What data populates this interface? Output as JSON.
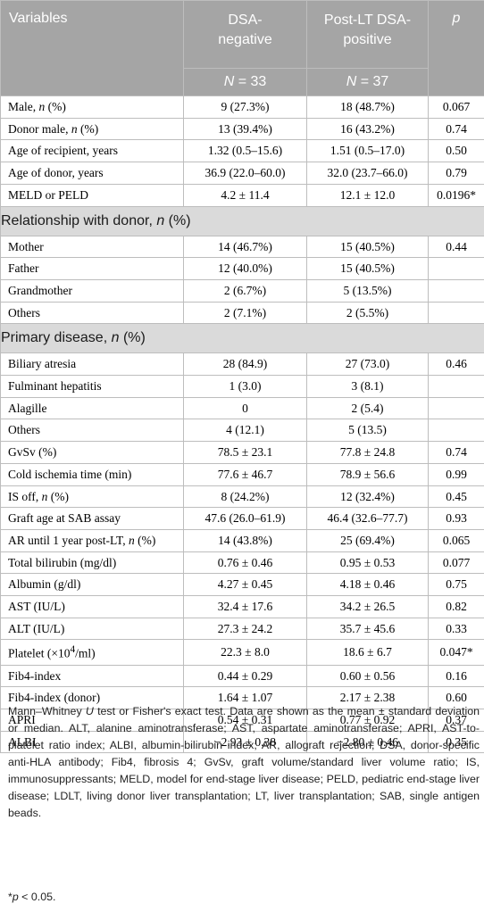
{
  "header": {
    "variables": "Variables",
    "col1_line1": "DSA-",
    "col1_line2": "negative",
    "col2_line1": "Post-LT DSA-",
    "col2_line2": "positive",
    "p": "p",
    "n_label": "N",
    "n1": " = 33",
    "n2": " = 37"
  },
  "rows1": [
    {
      "label": "Male, ",
      "label_i": "n",
      "label_tail": " (%)",
      "a": "9 (27.3%)",
      "b": "18 (48.7%)",
      "p": "0.067"
    },
    {
      "label": "Donor male, ",
      "label_i": "n",
      "label_tail": " (%)",
      "a": "13 (39.4%)",
      "b": "16 (43.2%)",
      "p": "0.74"
    },
    {
      "label": "Age of recipient, years",
      "a": "1.32 (0.5–15.6)",
      "b": "1.51 (0.5–17.0)",
      "p": "0.50"
    },
    {
      "label": "Age of donor, years",
      "a": "36.9 (22.0–60.0)",
      "b": "32.0 (23.7–66.0)",
      "p": "0.79"
    },
    {
      "label": "MELD or PELD",
      "a": "4.2 ± 11.4",
      "b": "12.1 ± 12.0",
      "p": "0.0196*"
    }
  ],
  "section1": {
    "label": "Relationship with donor, ",
    "label_i": "n",
    "label_tail": " (%)"
  },
  "rows2": [
    {
      "label": "Mother",
      "a": "14 (46.7%)",
      "b": "15 (40.5%)",
      "p": "0.44"
    },
    {
      "label": "Father",
      "a": "12 (40.0%)",
      "b": "15 (40.5%)",
      "p": ""
    },
    {
      "label": "Grandmother",
      "a": "2 (6.7%)",
      "b": "5 (13.5%)",
      "p": ""
    },
    {
      "label": "Others",
      "a": "2 (7.1%)",
      "b": "2 (5.5%)",
      "p": ""
    }
  ],
  "section2": {
    "label": "Primary disease, ",
    "label_i": "n",
    "label_tail": " (%)"
  },
  "rows3": [
    {
      "label": "Biliary atresia",
      "a": "28 (84.9)",
      "b": "27 (73.0)",
      "p": "0.46"
    },
    {
      "label": "Fulminant hepatitis",
      "a": "1 (3.0)",
      "b": "3 (8.1)",
      "p": ""
    },
    {
      "label": "Alagille",
      "a": "0",
      "b": "2 (5.4)",
      "p": ""
    },
    {
      "label": "Others",
      "a": "4 (12.1)",
      "b": "5 (13.5)",
      "p": ""
    },
    {
      "label": "GvSv (%)",
      "a": "78.5 ± 23.1",
      "b": "77.8 ± 24.8",
      "p": "0.74"
    },
    {
      "label": "Cold ischemia time (min)",
      "a": "77.6 ± 46.7",
      "b": "78.9 ± 56.6",
      "p": "0.99"
    },
    {
      "label": "IS off, ",
      "label_i": "n",
      "label_tail": " (%)",
      "a": "8 (24.2%)",
      "b": "12 (32.4%)",
      "p": "0.45"
    },
    {
      "label": "Graft age at SAB assay",
      "a": "47.6 (26.0–61.9)",
      "b": "46.4 (32.6–77.7)",
      "p": "0.93"
    },
    {
      "label": "AR until 1 year post-LT, ",
      "label_i": "n",
      "label_tail": " (%)",
      "a": "14 (43.8%)",
      "b": "25 (69.4%)",
      "p": "0.065"
    },
    {
      "label": "Total bilirubin (mg/dl)",
      "a": "0.76 ± 0.46",
      "b": "0.95 ± 0.53",
      "p": "0.077"
    },
    {
      "label": "Albumin (g/dl)",
      "a": "4.27 ± 0.45",
      "b": "4.18 ± 0.46",
      "p": "0.75"
    },
    {
      "label": "AST (IU/L)",
      "a": "32.4 ± 17.6",
      "b": "34.2 ± 26.5",
      "p": "0.82"
    },
    {
      "label": "ALT (IU/L)",
      "a": "27.3 ± 24.2",
      "b": "35.7 ± 45.6",
      "p": "0.33"
    },
    {
      "label": "Platelet (×10",
      "label_sup": "4",
      "label_tail": "/ml)",
      "a": "22.3 ± 8.0",
      "b": "18.6 ± 6.7",
      "p": "0.047*"
    },
    {
      "label": "Fib4-index",
      "a": "0.44 ± 0.29",
      "b": "0.60 ± 0.56",
      "p": "0.16"
    },
    {
      "label": "Fib4-index (donor)",
      "a": "1.64 ± 1.07",
      "b": "2.17 ± 2.38",
      "p": "0.60"
    },
    {
      "label": "APRI",
      "a": "0.54 ± 0.31",
      "b": "0.77 ± 0.92",
      "p": "0.37"
    },
    {
      "label": "ALBI",
      "a": "−2.93 ± 0.38",
      "b": "−2.80 ± 0.46",
      "p": "0.35"
    }
  ],
  "footnote": {
    "text1": "Mann–Whitney ",
    "text_i": "U",
    "text2": " test or Fisher's exact test. Data are shown as the mean ± standard deviation or median. ALT, alanine aminotransferase; AST, aspartate aminotransferase; APRI, AST-to-platelet ratio index; ALBI, albumin-bilirubin index; AR, allograft rejection; DSA, donor-specific anti-HLA antibody; Fib4, fibrosis 4; GvSv, graft volume/standard liver volume ratio; IS, immunosuppressants; MELD, model for end-stage liver disease; PELD, pediatric end-stage liver disease; LDLT, living donor liver transplantation; LT, liver transplantation; SAB, single antigen beads.",
    "sig_star": "*",
    "sig_p": "p",
    "sig_tail": " < 0.05."
  }
}
